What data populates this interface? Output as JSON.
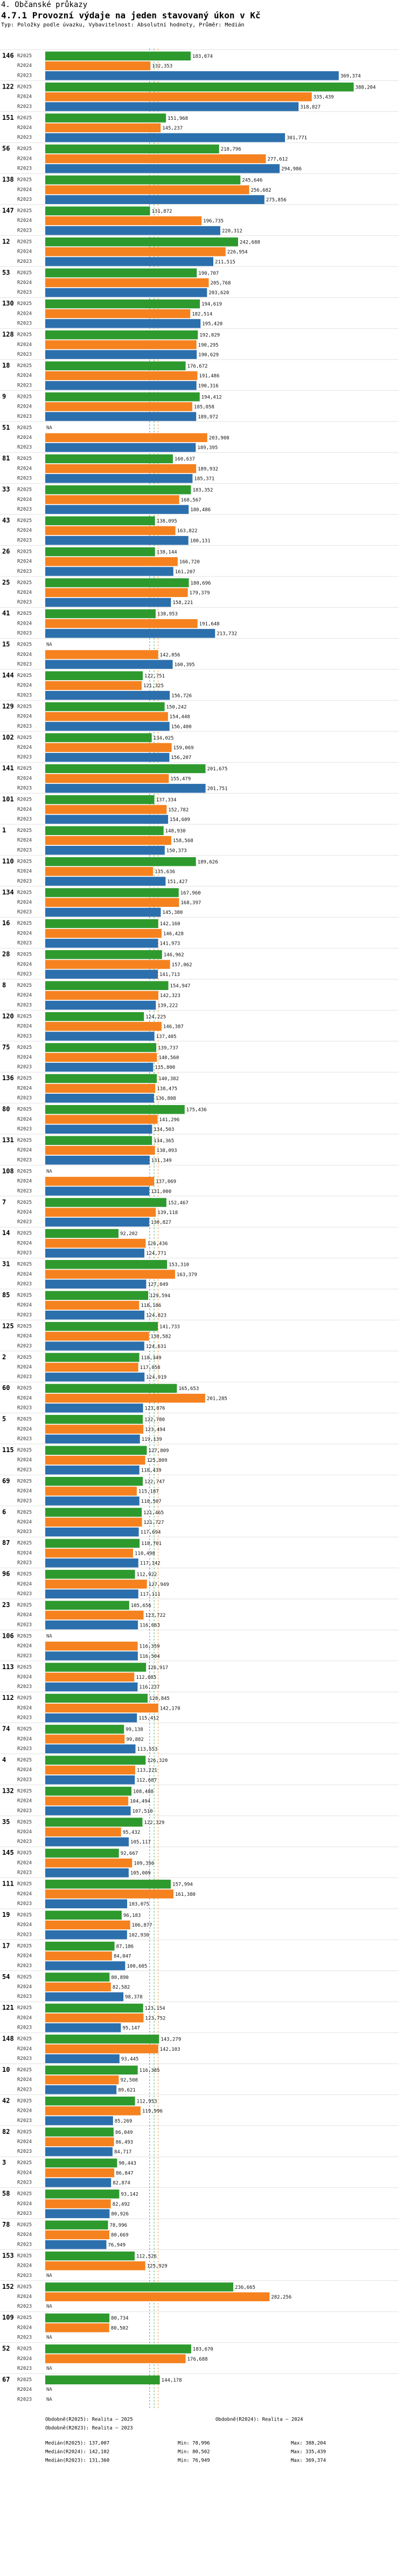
{
  "page_title": "4. Občanské průkazy",
  "chart_data": {
    "type": "bar",
    "orientation": "horizontal",
    "subtitle": "4.7.1 Provozní výdaje na jeden stavovaný úkon v Kč",
    "note": "Typ: Položky podle úvazku, Vybavitelnost: Absolutní hodnoty, Průměr: Medián",
    "series": [
      {
        "name": "R2025",
        "color": "#2e9a2e"
      },
      {
        "name": "R2024",
        "color": "#f5821f"
      },
      {
        "name": "R2023",
        "color": "#2c6fad"
      }
    ],
    "groups": [
      {
        "id": "146",
        "values": [
          183.074,
          132.353,
          369.374
        ]
      },
      {
        "id": "122",
        "values": [
          388.204,
          335.439,
          318.827
        ]
      },
      {
        "id": "151",
        "values": [
          151.968,
          145.237,
          301.771
        ]
      },
      {
        "id": "56",
        "values": [
          218.796,
          277.612,
          294.986
        ]
      },
      {
        "id": "138",
        "values": [
          245.646,
          256.682,
          275.856
        ]
      },
      {
        "id": "147",
        "values": [
          131.872,
          196.735,
          220.312
        ]
      },
      {
        "id": "12",
        "values": [
          242.688,
          226.954,
          211.515
        ]
      },
      {
        "id": "53",
        "values": [
          190.707,
          205.768,
          203.62
        ]
      },
      {
        "id": "130",
        "values": [
          194.619,
          182.514,
          195.42
        ]
      },
      {
        "id": "128",
        "values": [
          192.029,
          190.295,
          190.629
        ]
      },
      {
        "id": "18",
        "values": [
          176.672,
          191.486,
          190.316
        ]
      },
      {
        "id": "9",
        "values": [
          194.412,
          185.058,
          189.972
        ]
      },
      {
        "id": "51",
        "values": [
          null,
          203.908,
          189.395
        ]
      },
      {
        "id": "81",
        "values": [
          160.637,
          189.932,
          185.371
        ]
      },
      {
        "id": "33",
        "values": [
          183.352,
          168.567,
          180.486
        ]
      },
      {
        "id": "43",
        "values": [
          138.095,
          163.822,
          180.131
        ]
      },
      {
        "id": "26",
        "values": [
          138.144,
          166.72,
          161.207
        ]
      },
      {
        "id": "25",
        "values": [
          180.696,
          179.379,
          158.221
        ]
      },
      {
        "id": "41",
        "values": [
          138.953,
          191.648,
          213.732
        ]
      },
      {
        "id": "15",
        "values": [
          null,
          142.056,
          160.395
        ]
      },
      {
        "id": "144",
        "values": [
          122.751,
          121.325,
          156.726
        ]
      },
      {
        "id": "129",
        "values": [
          150.242,
          154.448,
          156.4
        ]
      },
      {
        "id": "102",
        "values": [
          134.025,
          159.069,
          156.207
        ]
      },
      {
        "id": "141",
        "values": [
          201.675,
          155.479,
          201.751
        ]
      },
      {
        "id": "101",
        "values": [
          137.334,
          152.782,
          154.609
        ]
      },
      {
        "id": "1",
        "values": [
          148.93,
          158.568,
          150.373
        ]
      },
      {
        "id": "110",
        "values": [
          189.626,
          135.636,
          151.427
        ]
      },
      {
        "id": "134",
        "values": [
          167.96,
          168.397,
          145.38
        ]
      },
      {
        "id": "16",
        "values": [
          142.16,
          146.428,
          141.973
        ]
      },
      {
        "id": "28",
        "values": [
          146.962,
          157.062,
          141.713
        ]
      },
      {
        "id": "8",
        "values": [
          154.947,
          142.323,
          139.222
        ]
      },
      {
        "id": "120",
        "values": [
          124.225,
          146.387,
          137.405
        ]
      },
      {
        "id": "75",
        "values": [
          139.737,
          140.56,
          135.8
        ]
      },
      {
        "id": "136",
        "values": [
          140.382,
          138.475,
          136.808
        ]
      },
      {
        "id": "80",
        "values": [
          175.436,
          141.296,
          134.503
        ]
      },
      {
        "id": "131",
        "values": [
          134.365,
          138.093,
          131.349
        ]
      },
      {
        "id": "108",
        "values": [
          null,
          137.069,
          131.0
        ]
      },
      {
        "id": "7",
        "values": [
          152.467,
          139.118,
          130.827
        ]
      },
      {
        "id": "14",
        "values": [
          92.202,
          126.436,
          124.771
        ]
      },
      {
        "id": "31",
        "values": [
          153.31,
          163.379,
          127.049
        ]
      },
      {
        "id": "85",
        "values": [
          129.594,
          118.186,
          124.823
        ]
      },
      {
        "id": "125",
        "values": [
          141.733,
          130.582,
          124.631
        ]
      },
      {
        "id": "2",
        "values": [
          118.349,
          117.058,
          124.919
        ]
      },
      {
        "id": "60",
        "values": [
          165.653,
          201.285,
          123.076
        ]
      },
      {
        "id": "5",
        "values": [
          122.78,
          123.494,
          119.139
        ]
      },
      {
        "id": "115",
        "values": [
          127.809,
          125.809,
          118.439
        ]
      },
      {
        "id": "69",
        "values": [
          122.747,
          115.187,
          118.507
        ]
      },
      {
        "id": "6",
        "values": [
          121.465,
          121.727,
          117.694
        ]
      },
      {
        "id": "87",
        "values": [
          118.701,
          110.498,
          117.142
        ]
      },
      {
        "id": "96",
        "values": [
          112.922,
          127.949,
          117.111
        ]
      },
      {
        "id": "23",
        "values": [
          105.656,
          123.722,
          116.663
        ]
      },
      {
        "id": "106",
        "values": [
          null,
          116.359,
          116.504
        ]
      },
      {
        "id": "113",
        "values": [
          126.917,
          112.085,
          116.237
        ]
      },
      {
        "id": "112",
        "values": [
          128.845,
          142.17,
          115.412
        ]
      },
      {
        "id": "74",
        "values": [
          99.138,
          99.882,
          113.553
        ]
      },
      {
        "id": "4",
        "values": [
          126.32,
          113.221,
          112.687
        ]
      },
      {
        "id": "132",
        "values": [
          108.488,
          104.494,
          107.51
        ]
      },
      {
        "id": "35",
        "values": [
          122.329,
          95.432,
          105.117
        ]
      },
      {
        "id": "145",
        "values": [
          92.667,
          109.356,
          105.009
        ]
      },
      {
        "id": "111",
        "values": [
          157.994,
          161.38,
          103.075
        ]
      },
      {
        "id": "19",
        "values": [
          96.183,
          106.877,
          102.93
        ]
      },
      {
        "id": "17",
        "values": [
          87.186,
          84.047,
          100.605
        ]
      },
      {
        "id": "54",
        "values": [
          80.89,
          82.582,
          98.378
        ]
      },
      {
        "id": "121",
        "values": [
          123.154,
          123.752,
          95.147
        ]
      },
      {
        "id": "148",
        "values": [
          143.279,
          142.103,
          93.445
        ]
      },
      {
        "id": "10",
        "values": [
          116.385,
          92.508,
          89.621
        ]
      },
      {
        "id": "42",
        "values": [
          112.953,
          119.996,
          85.269
        ]
      },
      {
        "id": "82",
        "values": [
          86.049,
          86.493,
          84.717
        ]
      },
      {
        "id": "3",
        "values": [
          90.443,
          86.847,
          82.874
        ]
      },
      {
        "id": "58",
        "values": [
          93.142,
          82.492,
          80.926
        ]
      },
      {
        "id": "78",
        "values": [
          78.996,
          80.669,
          76.949
        ]
      },
      {
        "id": "153",
        "values": [
          112.526,
          125.929,
          null
        ]
      },
      {
        "id": "152",
        "values": [
          236.665,
          282.256,
          null
        ]
      },
      {
        "id": "109",
        "values": [
          80.734,
          80.502,
          null
        ]
      },
      {
        "id": "52",
        "values": [
          183.67,
          176.688,
          null
        ]
      },
      {
        "id": "67",
        "values": [
          144.178,
          null,
          null
        ]
      }
    ],
    "reference_lines": [
      {
        "label": "Medián(R2025): 137,007",
        "value": 137.007,
        "color": "#2e9a2e"
      },
      {
        "label": "Medián(R2024): 142,102",
        "value": 142.102,
        "color": "#f5821f"
      },
      {
        "label": "Medián(R2023): 131,360",
        "value": 131.36,
        "color": "#2c6fad"
      }
    ],
    "legend": [
      "Obdobně(R2025): Realita – 2025",
      "Obdobně(R2024): Realita – 2024",
      "Obdobně(R2023): Realita – 2023"
    ],
    "stats": [
      "Medián(R2025): 137,007",
      "Min: 78,996",
      "Max: 388,204",
      "Medián(R2024): 142,102",
      "Min: 80,502",
      "Max: 335,439",
      "Medián(R2023): 131,360",
      "Min: 76,949",
      "Max: 369,374"
    ],
    "missing_label": "NA",
    "xlim": [
      0,
      400
    ],
    "number_format": "cs-CZ, 3 decimals"
  }
}
